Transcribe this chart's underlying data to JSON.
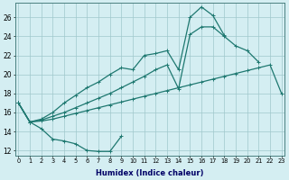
{
  "xlabel": "Humidex (Indice chaleur)",
  "bg_color": "#d4eef2",
  "grid_color": "#a0c8cc",
  "line_color": "#1e7870",
  "x_ticks": [
    0,
    1,
    2,
    3,
    4,
    5,
    6,
    7,
    8,
    9,
    10,
    11,
    12,
    13,
    14,
    15,
    16,
    17,
    18,
    19,
    20,
    21,
    22,
    23
  ],
  "y_ticks": [
    12,
    14,
    16,
    18,
    20,
    22,
    24,
    26
  ],
  "xlim": [
    -0.3,
    23.3
  ],
  "ylim": [
    11.5,
    27.5
  ],
  "curve1_x": [
    0,
    1,
    2,
    3,
    4,
    5,
    6,
    7,
    8,
    9
  ],
  "curve1_y": [
    17.0,
    15.0,
    14.3,
    13.2,
    13.0,
    12.7,
    12.0,
    11.9,
    11.9,
    13.5
  ],
  "curve2_x": [
    0,
    1,
    2,
    3,
    4,
    5,
    6,
    7,
    8,
    9,
    10,
    11,
    12,
    13,
    14,
    15,
    16,
    17,
    18,
    19,
    20,
    21,
    22,
    23
  ],
  "curve2_y": [
    17.0,
    15.0,
    15.1,
    15.3,
    15.6,
    15.9,
    16.2,
    16.5,
    16.8,
    17.1,
    17.4,
    17.7,
    18.0,
    18.3,
    18.6,
    18.9,
    19.2,
    19.5,
    19.8,
    20.1,
    20.4,
    20.7,
    21.0,
    18.0
  ],
  "curve3_x": [
    0,
    1,
    2,
    3,
    4,
    5,
    6,
    7,
    8,
    9,
    10,
    11,
    12,
    13,
    14,
    15,
    16,
    17,
    18,
    19,
    20,
    21
  ],
  "curve3_y": [
    17.0,
    15.0,
    15.2,
    15.6,
    16.0,
    16.5,
    17.0,
    17.5,
    18.0,
    18.6,
    19.2,
    19.8,
    20.5,
    21.0,
    18.5,
    24.2,
    25.0,
    25.0,
    24.0,
    23.0,
    22.5,
    21.3
  ],
  "curve4_x": [
    0,
    1,
    2,
    3,
    4,
    5,
    6,
    7,
    8,
    9,
    10,
    11,
    12,
    13,
    14,
    15,
    16,
    17,
    18
  ],
  "curve4_y": [
    17.0,
    15.0,
    15.3,
    16.0,
    17.0,
    17.8,
    18.6,
    19.2,
    20.0,
    20.7,
    20.5,
    22.0,
    22.2,
    22.5,
    20.5,
    26.0,
    27.1,
    26.2,
    24.1
  ]
}
